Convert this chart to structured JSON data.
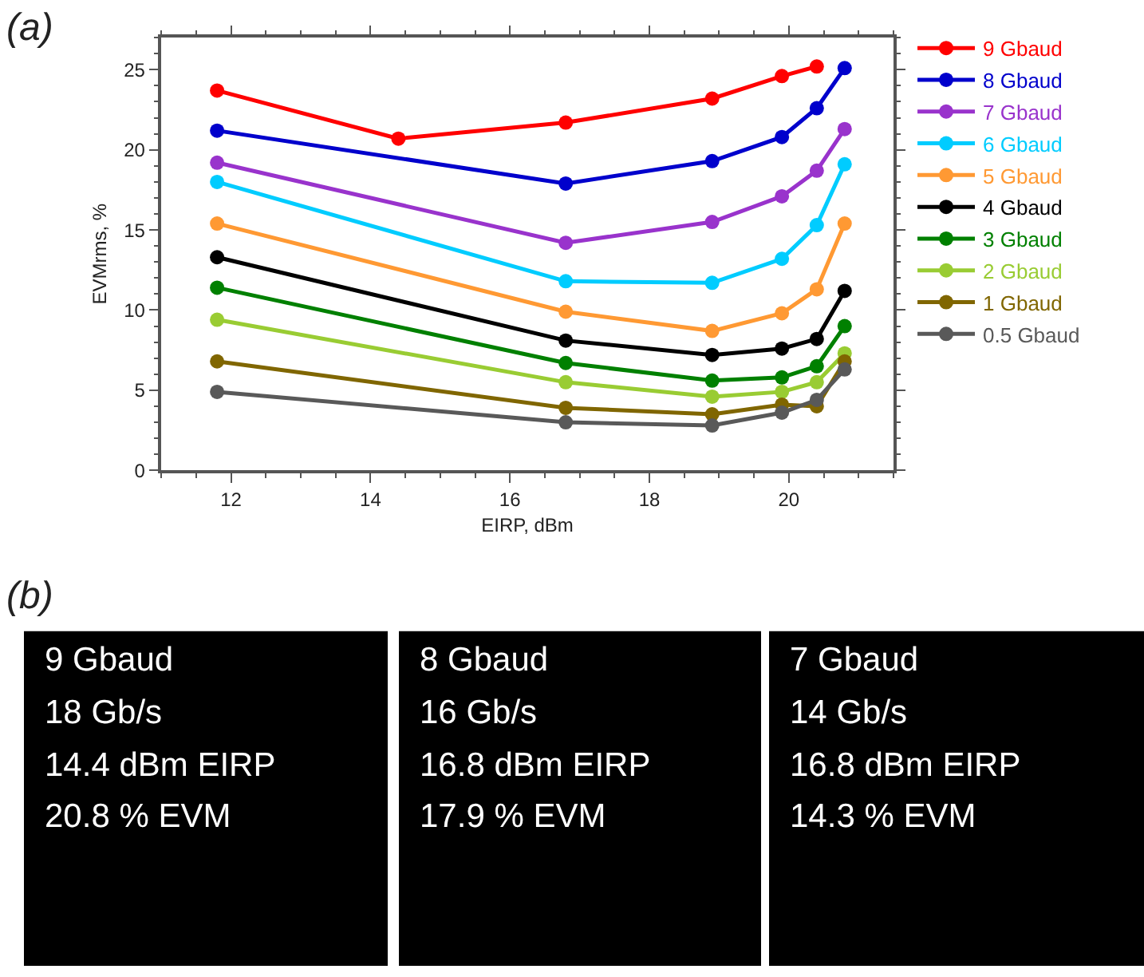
{
  "chart_data": [
    {
      "type": "line",
      "title": "(a)",
      "xlabel": "EIRP, dBm",
      "ylabel": "EVMrms, %",
      "xlim": [
        11,
        21.5
      ],
      "xticks": [
        12,
        14,
        16,
        18,
        20
      ],
      "ylim": [
        0,
        27
      ],
      "yticks": [
        0,
        5,
        10,
        15,
        20,
        25
      ],
      "legend": "top right",
      "marker": "circle",
      "line_style": "solid",
      "series": [
        {
          "name": "9 Gbaud",
          "color": "#ff0000",
          "x": [
            11.8,
            14.4,
            16.8,
            18.9,
            19.9,
            20.4
          ],
          "values": [
            23.7,
            20.7,
            21.7,
            23.2,
            24.6,
            25.2
          ]
        },
        {
          "name": "8 Gbaud",
          "color": "#0000cc",
          "x": [
            11.8,
            16.8,
            18.9,
            19.9,
            20.4,
            20.8
          ],
          "values": [
            21.2,
            17.9,
            19.3,
            20.8,
            22.6,
            25.1
          ]
        },
        {
          "name": "7 Gbaud",
          "color": "#9933cc",
          "x": [
            11.8,
            16.8,
            18.9,
            19.9,
            20.4,
            20.8
          ],
          "values": [
            19.2,
            14.2,
            15.5,
            17.1,
            18.7,
            21.3
          ]
        },
        {
          "name": "6 Gbaud",
          "color": "#00ccff",
          "x": [
            11.8,
            16.8,
            18.9,
            19.9,
            20.4,
            20.8
          ],
          "values": [
            18.0,
            11.8,
            11.7,
            13.2,
            15.3,
            19.1
          ]
        },
        {
          "name": "5 Gbaud",
          "color": "#ff9933",
          "x": [
            11.8,
            16.8,
            18.9,
            19.9,
            20.4,
            20.8
          ],
          "values": [
            15.4,
            9.9,
            8.7,
            9.8,
            11.3,
            15.4
          ]
        },
        {
          "name": "4 Gbaud",
          "color": "#000000",
          "x": [
            11.8,
            16.8,
            18.9,
            19.9,
            20.4,
            20.8
          ],
          "values": [
            13.3,
            8.1,
            7.2,
            7.6,
            8.2,
            11.2
          ]
        },
        {
          "name": "3 Gbaud",
          "color": "#008000",
          "x": [
            11.8,
            16.8,
            18.9,
            19.9,
            20.4,
            20.8
          ],
          "values": [
            11.4,
            6.7,
            5.6,
            5.8,
            6.5,
            9.0
          ]
        },
        {
          "name": "2 Gbaud",
          "color": "#99cc33",
          "x": [
            11.8,
            16.8,
            18.9,
            19.9,
            20.4,
            20.8
          ],
          "values": [
            9.4,
            5.5,
            4.6,
            4.9,
            5.5,
            7.3
          ]
        },
        {
          "name": "1 Gbaud",
          "color": "#806600",
          "x": [
            11.8,
            16.8,
            18.9,
            19.9,
            20.4,
            20.8
          ],
          "values": [
            6.8,
            3.9,
            3.5,
            4.1,
            4.0,
            6.8
          ]
        },
        {
          "name": "0.5 Gbaud",
          "color": "#595959",
          "x": [
            11.8,
            16.8,
            18.9,
            19.9,
            20.4,
            20.8
          ],
          "values": [
            4.9,
            3.0,
            2.8,
            3.6,
            4.4,
            6.3
          ]
        }
      ]
    },
    {
      "type": "other",
      "title": "(b)",
      "annotations": [
        "9 Gbaud",
        "18 Gb/s",
        "14.4 dBm EIRP",
        "20.8 % EVM"
      ]
    },
    {
      "type": "other",
      "annotations": [
        "8 Gbaud",
        "16 Gb/s",
        "16.8 dBm EIRP",
        "17.9 % EVM"
      ]
    },
    {
      "type": "other",
      "annotations": [
        "7 Gbaud",
        "14 Gb/s",
        "16.8 dBm EIRP",
        "14.3 % EVM"
      ]
    }
  ]
}
